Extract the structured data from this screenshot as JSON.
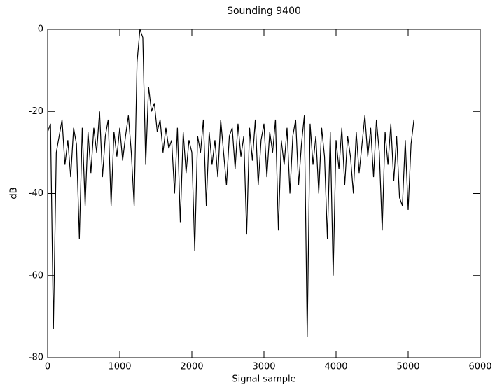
{
  "chart_data": {
    "type": "line",
    "title": "Sounding 9400",
    "x_label": "Signal sample",
    "y_label": "dB",
    "series": [
      {
        "name": null,
        "color": "#000000",
        "x": [
          0,
          40,
          80,
          120,
          160,
          200,
          240,
          280,
          320,
          360,
          400,
          440,
          480,
          520,
          560,
          600,
          640,
          680,
          720,
          760,
          800,
          840,
          880,
          920,
          960,
          1000,
          1040,
          1080,
          1120,
          1160,
          1200,
          1240,
          1280,
          1320,
          1360,
          1400,
          1440,
          1480,
          1520,
          1560,
          1600,
          1640,
          1680,
          1720,
          1760,
          1800,
          1840,
          1880,
          1920,
          1960,
          2000,
          2040,
          2080,
          2120,
          2160,
          2200,
          2240,
          2280,
          2320,
          2360,
          2400,
          2440,
          2480,
          2520,
          2560,
          2600,
          2640,
          2680,
          2720,
          2760,
          2800,
          2840,
          2880,
          2920,
          2960,
          3000,
          3040,
          3080,
          3120,
          3160,
          3200,
          3240,
          3280,
          3320,
          3360,
          3400,
          3440,
          3480,
          3520,
          3560,
          3600,
          3640,
          3680,
          3720,
          3760,
          3800,
          3840,
          3880,
          3920,
          3960,
          4000,
          4040,
          4080,
          4120,
          4160,
          4200,
          4240,
          4280,
          4320,
          4360,
          4400,
          4440,
          4480,
          4520,
          4560,
          4600,
          4640,
          4680,
          4720,
          4760,
          4800,
          4840,
          4880,
          4920,
          4960,
          5000,
          5040,
          5080
        ],
        "values": [
          -25,
          -23,
          -73,
          -30,
          -26,
          -22,
          -33,
          -27,
          -36,
          -24,
          -28,
          -51,
          -24,
          -43,
          -25,
          -35,
          -24,
          -30,
          -20,
          -36,
          -26,
          -22,
          -43,
          -25,
          -31,
          -24,
          -32,
          -26,
          -21,
          -30,
          -43,
          -8,
          0,
          -2,
          -33,
          -14,
          -20,
          -18,
          -25,
          -22,
          -30,
          -24,
          -29,
          -27,
          -40,
          -24,
          -47,
          -25,
          -35,
          -27,
          -30,
          -54,
          -26,
          -30,
          -22,
          -43,
          -25,
          -33,
          -27,
          -36,
          -22,
          -30,
          -38,
          -26,
          -24,
          -34,
          -23,
          -31,
          -26,
          -50,
          -24,
          -32,
          -22,
          -38,
          -27,
          -23,
          -36,
          -25,
          -30,
          -22,
          -49,
          -27,
          -33,
          -24,
          -40,
          -26,
          -22,
          -38,
          -28,
          -21,
          -75,
          -23,
          -33,
          -26,
          -40,
          -24,
          -31,
          -51,
          -25,
          -60,
          -27,
          -34,
          -24,
          -38,
          -26,
          -31,
          -40,
          -25,
          -35,
          -28,
          -21,
          -31,
          -24,
          -36,
          -22,
          -30,
          -49,
          -25,
          -33,
          -23,
          -37,
          -26,
          -41,
          -43,
          -27,
          -44,
          -28,
          -22
        ]
      }
    ],
    "xlim": [
      0,
      6000
    ],
    "xticks": [
      0,
      1000,
      2000,
      3000,
      4000,
      5000,
      6000
    ],
    "ylim": [
      -80,
      0
    ],
    "yticks": [
      -80,
      -60,
      -40,
      -20,
      0
    ],
    "grid": false
  }
}
